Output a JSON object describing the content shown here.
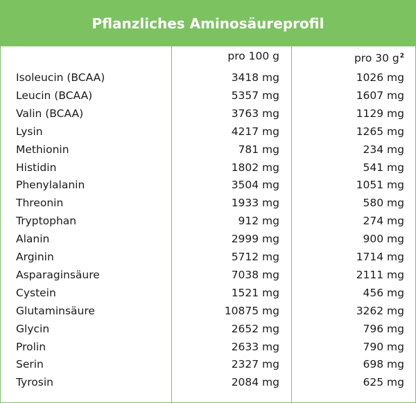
{
  "title": "Pflanzliches Aminosäureprofil",
  "columns": {
    "per_100g": "pro 100 g",
    "per_30g": "pro 30 g",
    "per_30g_note": "2"
  },
  "rows": [
    {
      "name": "Isoleucin (BCAA)",
      "per_100g": "3418 mg",
      "per_30g": "1026 mg"
    },
    {
      "name": "Leucin (BCAA)",
      "per_100g": "5357 mg",
      "per_30g": "1607 mg"
    },
    {
      "name": "Valin (BCAA)",
      "per_100g": "3763 mg",
      "per_30g": "1129 mg"
    },
    {
      "name": "Lysin",
      "per_100g": "4217 mg",
      "per_30g": "1265 mg"
    },
    {
      "name": "Methionin",
      "per_100g": "781 mg",
      "per_30g": "234 mg"
    },
    {
      "name": "Histidin",
      "per_100g": "1802 mg",
      "per_30g": "541 mg"
    },
    {
      "name": "Phenylalanin",
      "per_100g": "3504 mg",
      "per_30g": "1051 mg"
    },
    {
      "name": "Threonin",
      "per_100g": "1933 mg",
      "per_30g": "580 mg"
    },
    {
      "name": "Tryptophan",
      "per_100g": "912 mg",
      "per_30g": "274 mg"
    },
    {
      "name": "Alanin",
      "per_100g": "2999 mg",
      "per_30g": "900 mg"
    },
    {
      "name": "Arginin",
      "per_100g": "5712 mg",
      "per_30g": "1714 mg"
    },
    {
      "name": "Asparaginsäure",
      "per_100g": "7038 mg",
      "per_30g": "2111 mg"
    },
    {
      "name": "Cystein",
      "per_100g": "1521 mg",
      "per_30g": "456 mg"
    },
    {
      "name": "Glutaminsäure",
      "per_100g": "10875 mg",
      "per_30g": "3262 mg"
    },
    {
      "name": "Glycin",
      "per_100g": "2652 mg",
      "per_30g": "796 mg"
    },
    {
      "name": "Prolin",
      "per_100g": "2633 mg",
      "per_30g": "790 mg"
    },
    {
      "name": "Serin",
      "per_100g": "2327 mg",
      "per_30g": "698 mg"
    },
    {
      "name": "Tyrosin",
      "per_100g": "2084 mg",
      "per_30g": "625 mg"
    }
  ],
  "colors": {
    "accent": "#7dc261",
    "text": "#1a1a1a",
    "header_text": "#ffffff"
  }
}
